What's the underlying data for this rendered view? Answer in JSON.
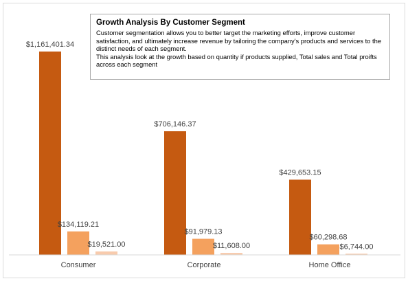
{
  "chart_data": {
    "type": "bar",
    "title": "Growth Analysis By Customer Segment",
    "description": [
      "Customer segmentation allows you to better target the  marketing efforts, improve customer satisfaction, and ultimately increase revenue by tailoring the company's products and services to the distinct needs of each segment.",
      "This analysis look at the growth based on quantity if products supplied, Total sales and Total proifts across each segment"
    ],
    "categories": [
      "Consumer",
      "Corporate",
      "Home Office"
    ],
    "series": [
      {
        "values": [
          1161401.34,
          706146.37,
          429653.15
        ],
        "labels": [
          "$1,161,401.34",
          "$706,146.37",
          "$429,653.15"
        ],
        "color": "#C55A11"
      },
      {
        "values": [
          134119.21,
          91979.13,
          60298.68
        ],
        "labels": [
          "$134,119.21",
          "$91,979.13",
          "$60,298.68"
        ],
        "color": "#F4A15E"
      },
      {
        "values": [
          19521.0,
          11608.0,
          6744.0
        ],
        "labels": [
          "$19,521.00",
          "$11,608.00",
          "$6,744.00"
        ],
        "color": "#F8CBAD"
      }
    ],
    "ylim": [
      0,
      1200000
    ],
    "grid": false,
    "legend": "none",
    "axis_color": "#d9d9d9"
  }
}
